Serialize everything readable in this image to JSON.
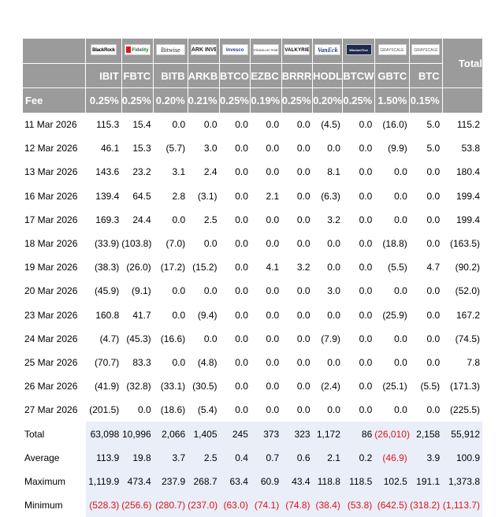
{
  "header": {
    "logos": [
      "BlackRock",
      "Fidelity",
      "Bitwise",
      "ARK INVEST",
      "Invesco",
      "FRANKLIN TEMPLETON",
      "VALKYRIE",
      "VanEck",
      "WisdomTree",
      "GRAYSCALE",
      "GRAYSCALE"
    ],
    "total_label": "Total",
    "tickers": [
      "IBIT",
      "FBTC",
      "BITB",
      "ARKB",
      "BTCO",
      "EZBC",
      "BRRR",
      "HODL",
      "BTCW",
      "GBTC",
      "BTC"
    ],
    "fee_label": "Fee",
    "fees": [
      "0.25%",
      "0.25%",
      "0.20%",
      "0.21%",
      "0.25%",
      "0.19%",
      "0.25%",
      "0.20%",
      "0.25%",
      "1.50%",
      "0.15%"
    ]
  },
  "rows": [
    {
      "date": "11 Mar 2026",
      "values": [
        "115.3",
        "15.4",
        "0.0",
        "0.0",
        "0.0",
        "0.0",
        "0.0",
        "(4.5)",
        "0.0",
        "(16.0)",
        "5.0"
      ],
      "total": "115.2"
    },
    {
      "date": "12 Mar 2026",
      "values": [
        "46.1",
        "15.3",
        "(5.7)",
        "3.0",
        "0.0",
        "0.0",
        "0.0",
        "0.0",
        "0.0",
        "(9.9)",
        "5.0"
      ],
      "total": "53.8"
    },
    {
      "date": "13 Mar 2026",
      "values": [
        "143.6",
        "23.2",
        "3.1",
        "2.4",
        "0.0",
        "0.0",
        "0.0",
        "8.1",
        "0.0",
        "0.0",
        "0.0"
      ],
      "total": "180.4"
    },
    {
      "date": "16 Mar 2026",
      "values": [
        "139.4",
        "64.5",
        "2.8",
        "(3.1)",
        "0.0",
        "2.1",
        "0.0",
        "(6.3)",
        "0.0",
        "0.0",
        "0.0"
      ],
      "total": "199.4"
    },
    {
      "date": "17 Mar 2026",
      "values": [
        "169.3",
        "24.4",
        "0.0",
        "2.5",
        "0.0",
        "0.0",
        "0.0",
        "3.2",
        "0.0",
        "0.0",
        "0.0"
      ],
      "total": "199.4"
    },
    {
      "date": "18 Mar 2026",
      "values": [
        "(33.9)",
        "(103.8)",
        "(7.0)",
        "0.0",
        "0.0",
        "0.0",
        "0.0",
        "0.0",
        "0.0",
        "(18.8)",
        "0.0"
      ],
      "total": "(163.5)"
    },
    {
      "date": "19 Mar 2026",
      "values": [
        "(38.3)",
        "(26.0)",
        "(17.2)",
        "(15.2)",
        "0.0",
        "4.1",
        "3.2",
        "0.0",
        "0.0",
        "(5.5)",
        "4.7"
      ],
      "total": "(90.2)"
    },
    {
      "date": "20 Mar 2026",
      "values": [
        "(45.9)",
        "(9.1)",
        "0.0",
        "0.0",
        "0.0",
        "0.0",
        "0.0",
        "3.0",
        "0.0",
        "0.0",
        "0.0"
      ],
      "total": "(52.0)"
    },
    {
      "date": "23 Mar 2026",
      "values": [
        "160.8",
        "41.7",
        "0.0",
        "(9.4)",
        "0.0",
        "0.0",
        "0.0",
        "0.0",
        "0.0",
        "(25.9)",
        "0.0"
      ],
      "total": "167.2"
    },
    {
      "date": "24 Mar 2026",
      "values": [
        "(4.7)",
        "(45.3)",
        "(16.6)",
        "0.0",
        "0.0",
        "0.0",
        "0.0",
        "(7.9)",
        "0.0",
        "0.0",
        "0.0"
      ],
      "total": "(74.5)"
    },
    {
      "date": "25 Mar 2026",
      "values": [
        "(70.7)",
        "83.3",
        "0.0",
        "(4.8)",
        "0.0",
        "0.0",
        "0.0",
        "0.0",
        "0.0",
        "0.0",
        "0.0"
      ],
      "total": "7.8"
    },
    {
      "date": "26 Mar 2026",
      "values": [
        "(41.9)",
        "(32.8)",
        "(33.1)",
        "(30.5)",
        "0.0",
        "0.0",
        "0.0",
        "(2.4)",
        "0.0",
        "(25.1)",
        "(5.5)"
      ],
      "total": "(171.3)"
    },
    {
      "date": "27 Mar 2026",
      "values": [
        "(201.5)",
        "0.0",
        "(18.6)",
        "(5.4)",
        "0.0",
        "0.0",
        "0.0",
        "0.0",
        "0.0",
        "0.0",
        "0.0"
      ],
      "total": "(225.5)"
    }
  ],
  "summary": [
    {
      "label": "Total",
      "values": [
        "63,098",
        "10,996",
        "2,066",
        "1,405",
        "245",
        "373",
        "323",
        "1,172",
        "86",
        "(26,010)",
        "2,158"
      ],
      "total": "55,912"
    },
    {
      "label": "Average",
      "values": [
        "113.9",
        "19.8",
        "3.7",
        "2.5",
        "0.4",
        "0.7",
        "0.6",
        "2.1",
        "0.2",
        "(46.9)",
        "3.9"
      ],
      "total": "100.9"
    },
    {
      "label": "Maximum",
      "values": [
        "1,119.9",
        "473.4",
        "237.9",
        "268.7",
        "63.4",
        "60.9",
        "43.4",
        "118.8",
        "118.5",
        "102.5",
        "191.1"
      ],
      "total": "1,373.8"
    },
    {
      "label": "Minimum",
      "values": [
        "(528.3)",
        "(256.6)",
        "(280.7)",
        "(237.0)",
        "(63.0)",
        "(74.1)",
        "(74.8)",
        "(38.4)",
        "(53.8)",
        "(642.5)",
        "(318.2)"
      ],
      "total": "(1,113.7)"
    }
  ],
  "colors": {
    "header_bg": "#9b9b9b",
    "negative": "#d8151b",
    "summary_bg": "#eaeef8"
  }
}
